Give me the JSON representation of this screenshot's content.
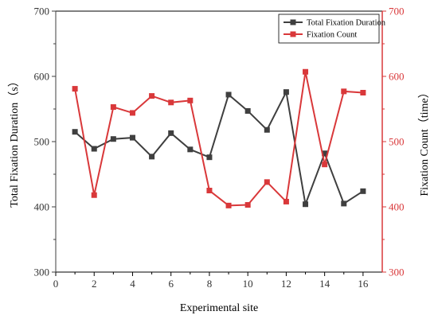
{
  "chart_data": {
    "type": "line",
    "xlabel": "Experimental site",
    "ylabel_left": "Total Fixation Duration（s）",
    "ylabel_right": "Fixation Count（time）",
    "xlim": [
      0,
      17
    ],
    "x_ticks": [
      0,
      2,
      4,
      6,
      8,
      10,
      12,
      14,
      16
    ],
    "ylim_left": [
      300,
      700
    ],
    "ylim_right": [
      300,
      700
    ],
    "y_ticks": [
      300,
      400,
      500,
      600,
      700
    ],
    "grid": false,
    "legend_position": "top-right",
    "series": [
      {
        "name": "Total Fixation Duration",
        "axis": "left",
        "color": "#3f3f3f",
        "marker": "square",
        "x": [
          1,
          2,
          3,
          4,
          5,
          6,
          7,
          8,
          9,
          10,
          11,
          12,
          13,
          14,
          15,
          16
        ],
        "values": [
          515,
          489,
          504,
          506,
          477,
          513,
          488,
          476,
          572,
          547,
          518,
          576,
          404,
          482,
          405,
          424
        ]
      },
      {
        "name": "Fixation Count",
        "axis": "right",
        "color": "#d9383a",
        "marker": "square",
        "x": [
          1,
          2,
          3,
          4,
          5,
          6,
          7,
          8,
          9,
          10,
          11,
          12,
          13,
          14,
          15,
          16
        ],
        "values": [
          581,
          418,
          553,
          544,
          570,
          560,
          563,
          425,
          402,
          403,
          438,
          408,
          607,
          465,
          577,
          575
        ]
      }
    ]
  },
  "colors": {
    "left_axis": "#3f3f3f",
    "right_axis": "#d9383a"
  }
}
